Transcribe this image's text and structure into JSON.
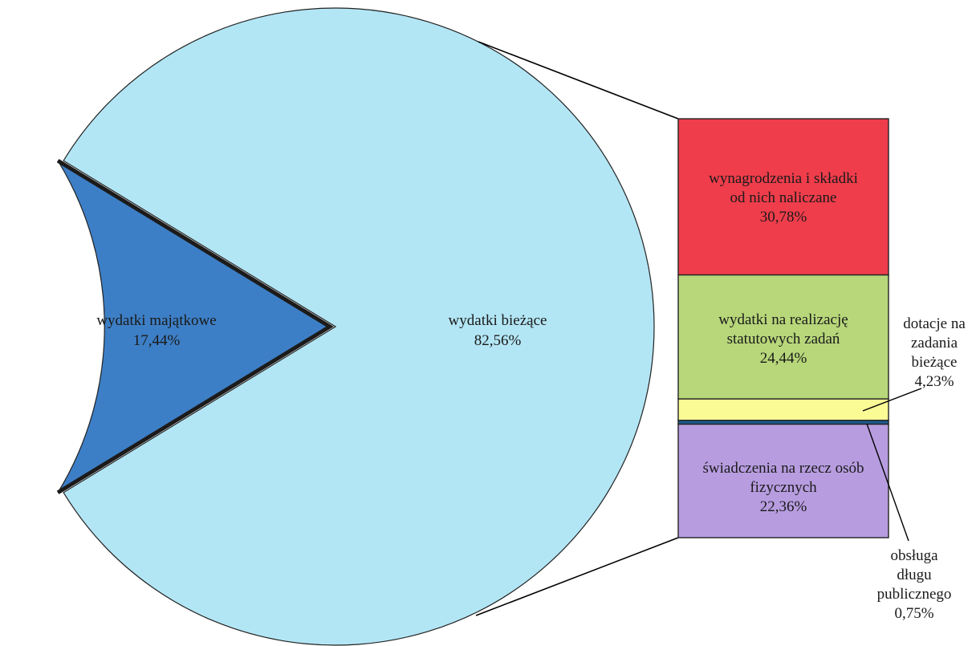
{
  "chart_data": {
    "type": "pie",
    "pie": {
      "slices": [
        {
          "label": "wydatki majątkowe",
          "value_label": "17,44%",
          "value": 17.44,
          "color": "#3d7fc6",
          "exploded": true
        },
        {
          "label": "wydatki bieżące",
          "value_label": "82,56%",
          "value": 82.56,
          "color": "#b3e6f5",
          "exploded": false
        }
      ]
    },
    "breakdown": {
      "type": "stacked_bar",
      "of": "wydatki bieżące",
      "segments": [
        {
          "label": "wynagrodzenia i składki od nich naliczane",
          "lines": [
            "wynagrodzenia i składki",
            "od nich naliczane"
          ],
          "value_label": "30,78%",
          "value": 30.78,
          "color": "#ef3d4b"
        },
        {
          "label": "wydatki na realizację statutowych zadań",
          "lines": [
            "wydatki na realizację",
            "statutowych zadań"
          ],
          "value_label": "24,44%",
          "value": 24.44,
          "color": "#b7d77a"
        },
        {
          "label": "dotacje na zadania bieżące",
          "lines": [
            "dotacje na",
            "zadania",
            "bieżące"
          ],
          "value_label": "4,23%",
          "value": 4.23,
          "color": "#fbfb96"
        },
        {
          "label": "obsługa długu publicznego",
          "lines": [
            "obsługa",
            "długu",
            "publicznego"
          ],
          "value_label": "0,75%",
          "value": 0.75,
          "color": "#1d5a8c"
        },
        {
          "label": "świadczenia na rzecz osób fizycznych",
          "lines": [
            "świadczenia na rzecz osób",
            "fizycznych"
          ],
          "value_label": "22,36%",
          "value": 22.36,
          "color": "#b79de0"
        }
      ]
    },
    "legend": "none"
  }
}
